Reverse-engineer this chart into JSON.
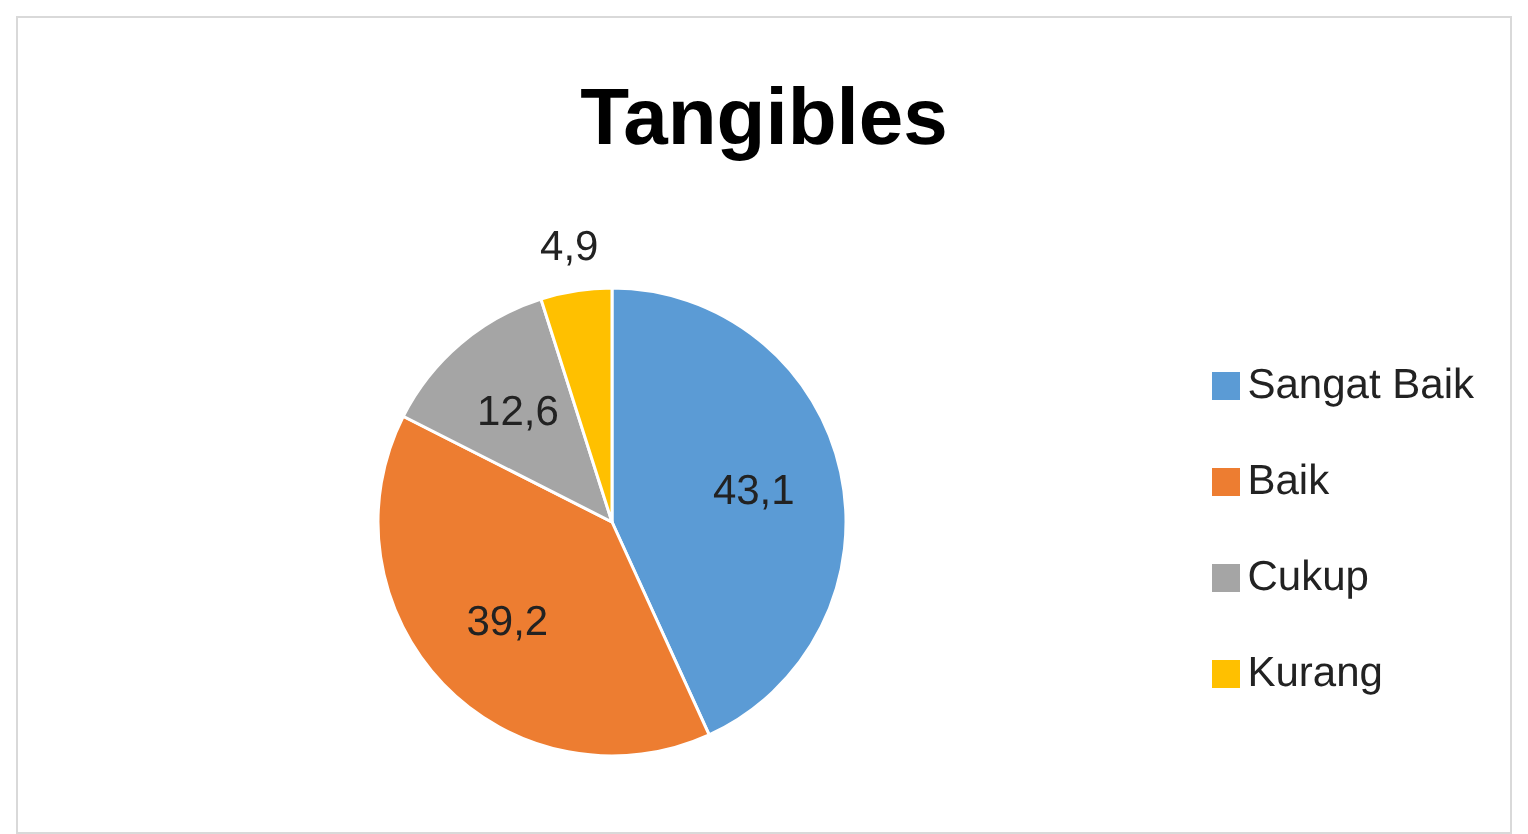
{
  "chart_data": {
    "type": "pie",
    "title": "Tangibles",
    "categories": [
      "Sangat Baik",
      "Baik",
      "Cukup",
      "Kurang"
    ],
    "values": [
      43.1,
      39.2,
      12.6,
      4.9
    ],
    "value_labels": [
      "43,1",
      "39,2",
      "12,6",
      "4,9"
    ],
    "colors": [
      "#5b9bd5",
      "#ed7d31",
      "#a5a5a5",
      "#ffc000"
    ],
    "legend": "right"
  }
}
